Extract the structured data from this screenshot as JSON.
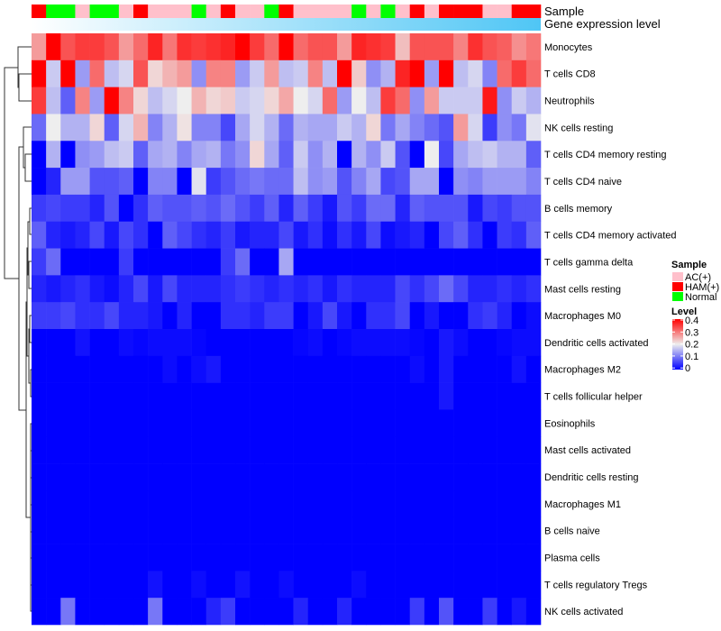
{
  "chart_data": {
    "type": "heatmap",
    "annotation_labels": {
      "sample": "Sample",
      "gene_expression": "Gene expression level"
    },
    "sample_groups": [
      "HAM(+)",
      "Normal",
      "Normal",
      "AC(+)",
      "Normal",
      "Normal",
      "AC(+)",
      "HAM(+)",
      "AC(+)",
      "AC(+)",
      "AC(+)",
      "Normal",
      "AC(+)",
      "HAM(+)",
      "AC(+)",
      "AC(+)",
      "Normal",
      "HAM(+)",
      "AC(+)",
      "AC(+)",
      "AC(+)",
      "AC(+)",
      "Normal",
      "AC(+)",
      "Normal",
      "AC(+)",
      "HAM(+)",
      "AC(+)",
      "HAM(+)",
      "HAM(+)",
      "HAM(+)",
      "AC(+)",
      "AC(+)",
      "HAM(+)",
      "HAM(+)"
    ],
    "gene_expression_colors": [
      "#ffffff",
      "#4fc6f5"
    ],
    "rows": [
      "Monocytes",
      "T cells CD8",
      "Neutrophils",
      "NK cells resting",
      "T cells CD4 memory resting",
      "T cells CD4 naive",
      "B cells memory",
      "T cells CD4 memory activated",
      "T cells gamma delta",
      "Mast cells resting",
      "Macrophages M0",
      "Dendritic cells activated",
      "Macrophages M2",
      "T cells follicular helper",
      "Eosinophils",
      "Mast cells activated",
      "Dendritic cells resting",
      "Macrophages M1",
      "B cells naive",
      "Plasma cells",
      "T cells regulatory  Tregs",
      "NK cells activated"
    ],
    "values": [
      [
        0.27,
        0.4,
        0.33,
        0.35,
        0.35,
        0.33,
        0.27,
        0.31,
        0.37,
        0.3,
        0.36,
        0.35,
        0.36,
        0.37,
        0.4,
        0.35,
        0.31,
        0.4,
        0.31,
        0.33,
        0.33,
        0.27,
        0.37,
        0.36,
        0.35,
        0.24,
        0.33,
        0.33,
        0.33,
        0.29,
        0.36,
        0.33,
        0.32,
        0.28,
        0.3
      ],
      [
        0.4,
        0.17,
        0.4,
        0.13,
        0.31,
        0.16,
        0.18,
        0.33,
        0.22,
        0.25,
        0.27,
        0.12,
        0.29,
        0.29,
        0.13,
        0.17,
        0.27,
        0.16,
        0.17,
        0.29,
        0.16,
        0.4,
        0.23,
        0.12,
        0.15,
        0.37,
        0.4,
        0.13,
        0.4,
        0.16,
        0.18,
        0.11,
        0.31,
        0.35,
        0.31
      ],
      [
        0.35,
        0.16,
        0.08,
        0.29,
        0.13,
        0.4,
        0.29,
        0.22,
        0.16,
        0.18,
        0.2,
        0.25,
        0.22,
        0.23,
        0.17,
        0.18,
        0.22,
        0.26,
        0.2,
        0.18,
        0.31,
        0.13,
        0.2,
        0.16,
        0.35,
        0.31,
        0.12,
        0.27,
        0.17,
        0.17,
        0.17,
        0.38,
        0.12,
        0.17,
        0.15
      ],
      [
        0.09,
        0.2,
        0.15,
        0.15,
        0.22,
        0.08,
        0.18,
        0.25,
        0.11,
        0.15,
        0.21,
        0.11,
        0.11,
        0.06,
        0.14,
        0.18,
        0.15,
        0.09,
        0.15,
        0.14,
        0.14,
        0.17,
        0.15,
        0.22,
        0.1,
        0.14,
        0.11,
        0.09,
        0.07,
        0.27,
        0.18,
        0.05,
        0.12,
        0.1,
        0.19
      ],
      [
        0,
        0.15,
        0,
        0.12,
        0.13,
        0.16,
        0.17,
        0.08,
        0.14,
        0.15,
        0.11,
        0.14,
        0.15,
        0.1,
        0.12,
        0.22,
        0.14,
        0.08,
        0.17,
        0.12,
        0.15,
        0,
        0.15,
        0.12,
        0.17,
        0.07,
        0,
        0.2,
        0.06,
        0.14,
        0.16,
        0.17,
        0.15,
        0.15,
        0.08
      ],
      [
        0,
        0.03,
        0.13,
        0.13,
        0.07,
        0.07,
        0.08,
        0,
        0.11,
        0.11,
        0,
        0.19,
        0.05,
        0.07,
        0.09,
        0.1,
        0.09,
        0.09,
        0.16,
        0.12,
        0.13,
        0.07,
        0.11,
        0.14,
        0.06,
        0.07,
        0.14,
        0.14,
        0,
        0.12,
        0.11,
        0.13,
        0.13,
        0.13,
        0.11
      ],
      [
        0.05,
        0.06,
        0.05,
        0.05,
        0.03,
        0.07,
        0,
        0.04,
        0.08,
        0.07,
        0.07,
        0.08,
        0.07,
        0.09,
        0.07,
        0.05,
        0.08,
        0.03,
        0.08,
        0.05,
        0.02,
        0.07,
        0.05,
        0.09,
        0.09,
        0.03,
        0.08,
        0.07,
        0.07,
        0.07,
        0.02,
        0.06,
        0.05,
        0.07,
        0.07
      ],
      [
        0.08,
        0.03,
        0.02,
        0.03,
        0.06,
        0.02,
        0.06,
        0.04,
        0,
        0.08,
        0.06,
        0.04,
        0.03,
        0.05,
        0.02,
        0.03,
        0.03,
        0.06,
        0.02,
        0.04,
        0.01,
        0.04,
        0.02,
        0.06,
        0.01,
        0.02,
        0.03,
        0,
        0.06,
        0.08,
        0.04,
        0,
        0.05,
        0.04,
        0.08
      ],
      [
        0.05,
        0.09,
        0,
        0,
        0,
        0,
        0.05,
        0,
        0,
        0,
        0,
        0,
        0,
        0.05,
        0.09,
        0,
        0,
        0.14,
        0,
        0,
        0,
        0,
        0,
        0,
        0,
        0,
        0,
        0,
        0,
        0,
        0,
        0,
        0,
        0,
        0
      ],
      [
        0.03,
        0.02,
        0.03,
        0.04,
        0.02,
        0.01,
        0.03,
        0.06,
        0.02,
        0.06,
        0.03,
        0.03,
        0.03,
        0.04,
        0.05,
        0.04,
        0.03,
        0.04,
        0.03,
        0.04,
        0.02,
        0.04,
        0.03,
        0.03,
        0.03,
        0.06,
        0.04,
        0.06,
        0.09,
        0.06,
        0.03,
        0.03,
        0.04,
        0.03,
        0.04
      ],
      [
        0.05,
        0.05,
        0.06,
        0.04,
        0.04,
        0.06,
        0.03,
        0.03,
        0.02,
        0,
        0.03,
        0,
        0,
        0.04,
        0.04,
        0.03,
        0.05,
        0.05,
        0,
        0.02,
        0.06,
        0.02,
        0,
        0.04,
        0.04,
        0.06,
        0,
        0.02,
        0,
        0,
        0.04,
        0.05,
        0.03,
        0,
        0.01
      ],
      [
        0,
        0,
        0,
        0.015,
        0,
        0,
        0.01,
        0.005,
        0.01,
        0.01,
        0.01,
        0.005,
        0,
        0,
        0,
        0,
        0,
        0,
        0.005,
        0.01,
        0,
        0.005,
        0.01,
        0.01,
        0.01,
        0.01,
        0.005,
        0,
        0.02,
        0.01,
        0,
        0,
        0.005,
        0.01,
        0.01
      ],
      [
        0,
        0,
        0,
        0,
        0,
        0,
        0,
        0,
        0,
        0.01,
        0,
        0.01,
        0.02,
        0,
        0,
        0,
        0,
        0,
        0,
        0,
        0,
        0,
        0,
        0,
        0,
        0,
        0.01,
        0,
        0.02,
        0,
        0,
        0,
        0,
        0.015,
        0
      ],
      [
        0,
        0,
        0,
        0,
        0,
        0,
        0,
        0,
        0,
        0,
        0,
        0,
        0,
        0,
        0,
        0,
        0,
        0,
        0,
        0,
        0,
        0,
        0,
        0,
        0,
        0,
        0,
        0,
        0.02,
        0,
        0,
        0,
        0,
        0,
        0
      ],
      [
        0,
        0,
        0,
        0,
        0,
        0,
        0,
        0,
        0,
        0,
        0,
        0,
        0,
        0,
        0,
        0,
        0,
        0,
        0,
        0,
        0,
        0,
        0,
        0,
        0,
        0,
        0,
        0,
        0,
        0,
        0,
        0,
        0,
        0,
        0
      ],
      [
        0,
        0,
        0,
        0,
        0,
        0,
        0,
        0,
        0,
        0,
        0,
        0,
        0,
        0,
        0,
        0,
        0,
        0,
        0,
        0,
        0,
        0,
        0,
        0,
        0,
        0,
        0,
        0,
        0,
        0,
        0,
        0,
        0,
        0,
        0
      ],
      [
        0,
        0,
        0,
        0,
        0,
        0,
        0,
        0,
        0,
        0,
        0,
        0,
        0,
        0,
        0,
        0,
        0,
        0,
        0,
        0,
        0,
        0,
        0,
        0,
        0,
        0,
        0,
        0,
        0,
        0,
        0,
        0,
        0,
        0,
        0
      ],
      [
        0,
        0,
        0,
        0,
        0,
        0,
        0,
        0,
        0,
        0,
        0,
        0,
        0,
        0,
        0,
        0,
        0,
        0,
        0,
        0,
        0,
        0,
        0,
        0,
        0,
        0,
        0,
        0,
        0,
        0,
        0,
        0,
        0,
        0,
        0
      ],
      [
        0,
        0,
        0,
        0,
        0,
        0,
        0,
        0,
        0,
        0,
        0,
        0,
        0,
        0,
        0,
        0,
        0,
        0,
        0,
        0,
        0,
        0,
        0,
        0,
        0,
        0,
        0,
        0,
        0,
        0,
        0,
        0,
        0,
        0,
        0
      ],
      [
        0,
        0,
        0,
        0,
        0,
        0,
        0,
        0,
        0,
        0,
        0,
        0,
        0,
        0,
        0,
        0,
        0,
        0,
        0,
        0,
        0,
        0,
        0,
        0,
        0,
        0,
        0,
        0,
        0,
        0,
        0,
        0,
        0,
        0,
        0
      ],
      [
        0,
        0,
        0,
        0,
        0,
        0,
        0,
        0,
        0.015,
        0,
        0,
        0.01,
        0,
        0,
        0.015,
        0,
        0,
        0.01,
        0,
        0,
        0,
        0,
        0.01,
        0,
        0,
        0,
        0,
        0,
        0,
        0,
        0,
        0,
        0,
        0,
        0
      ],
      [
        0,
        0,
        0.1,
        0,
        0,
        0,
        0,
        0,
        0.1,
        0,
        0,
        0,
        0.03,
        0.05,
        0,
        0,
        0,
        0,
        0.03,
        0,
        0,
        0.03,
        0,
        0,
        0,
        0,
        0.05,
        0,
        0.07,
        0,
        0,
        0.05,
        0,
        0.02,
        0
      ]
    ],
    "color_scale": {
      "min": 0,
      "mid": 0.2,
      "max": 0.4,
      "colors": [
        "#0000ff",
        "#eeeeee",
        "#ff0000"
      ]
    },
    "legend": {
      "sample_title": "Sample",
      "sample_entries": [
        {
          "label": "AC(+)",
          "color": "#ffc0cb"
        },
        {
          "label": "HAM(+)",
          "color": "#ff0000"
        },
        {
          "label": "Normal",
          "color": "#00ff00"
        }
      ],
      "level_title": "Level",
      "level_ticks": [
        "0.4",
        "0.3",
        "0.2",
        "0.1",
        "0"
      ],
      "placement": "right"
    }
  }
}
